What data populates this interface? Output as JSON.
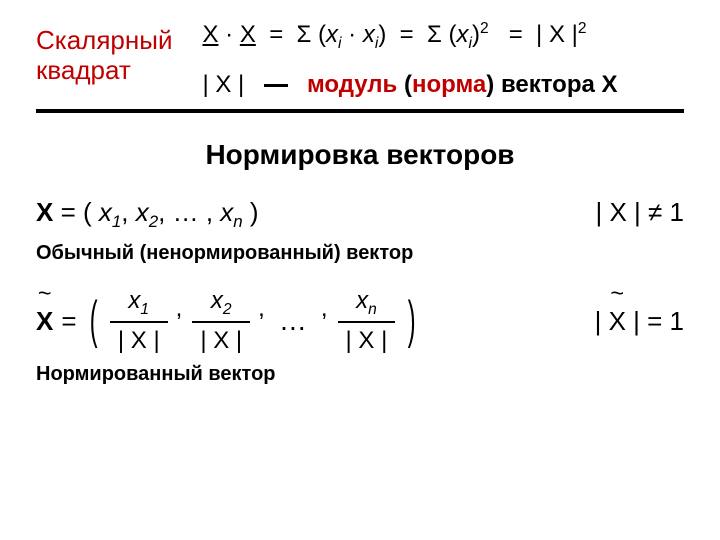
{
  "colors": {
    "accent": "#c00000",
    "text": "#000000",
    "bg": "#ffffff"
  },
  "top": {
    "side_label_l1": "Скалярный",
    "side_label_l2": "квадрат",
    "formula1_a": "X",
    "formula1_dot1": "·",
    "formula1_b": "X",
    "formula1_eq1": "=",
    "formula1_sum1": "Σ (",
    "formula1_xi1_x": "x",
    "formula1_xi1_i": "i",
    "formula1_dot2": " · ",
    "formula1_xi2_x": "x",
    "formula1_xi2_i": "i",
    "formula1_close1": ")",
    "formula1_eq2": "=",
    "formula1_sum2": "Σ (",
    "formula1_xi3_x": "x",
    "formula1_xi3_i": "i",
    "formula1_close2": ")",
    "formula1_pow2a": "2",
    "formula1_eq3": "=",
    "formula1_modx": "| X |",
    "formula1_pow2b": "2",
    "line2_modx": "| X |",
    "line2_word_modul": "модуль",
    "line2_paren_open": " (",
    "line2_word_norma": "норма",
    "line2_paren_close": ")",
    "line2_rest": " вектора X"
  },
  "heading": "Нормировка  векторов",
  "row2": {
    "lhs_X": "X",
    "lhs_eq": "  =  ( ",
    "x": "x",
    "s1": "1",
    "s2": "2",
    "sn": "n",
    "comma": ", ",
    "ellipsis": "… ",
    "close": " )",
    "rhs_mod": "| X |",
    "rhs_neq": " ≠  1"
  },
  "caption1": "Обычный (ненормированный) вектор",
  "row3": {
    "lhs_X": "X",
    "lhs_eq": "  =",
    "num_x": "x",
    "s1": "1",
    "s2": "2",
    "sn": "n",
    "den": "| X |",
    "dots": "…",
    "rhs_mod_open": "| ",
    "rhs_X": "X",
    "rhs_mod_close": " |",
    "rhs_eq": "  =  1"
  },
  "caption2": "Нормированный вектор"
}
